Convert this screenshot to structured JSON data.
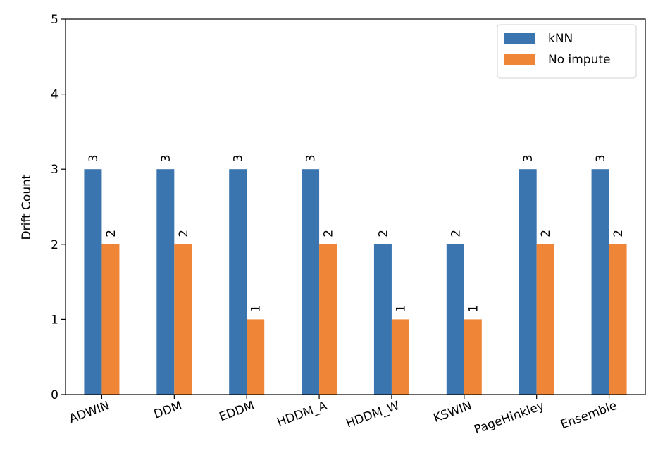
{
  "chart_data": {
    "type": "bar",
    "categories": [
      "ADWIN",
      "DDM",
      "EDDM",
      "HDDM_A",
      "HDDM_W",
      "KSWIN",
      "PageHinkley",
      "Ensemble"
    ],
    "series": [
      {
        "name": "kNN",
        "values": [
          3,
          3,
          3,
          3,
          2,
          2,
          3,
          3
        ],
        "color": "#3a75b0"
      },
      {
        "name": "No impute",
        "values": [
          2,
          2,
          1,
          2,
          1,
          1,
          2,
          2
        ],
        "color": "#ef8536"
      }
    ],
    "title": "",
    "xlabel": "",
    "ylabel": "Drift Count",
    "ylim": [
      0,
      5
    ],
    "yticks": [
      0,
      1,
      2,
      3,
      4,
      5
    ],
    "grid": false,
    "legend": "top-right",
    "x_tick_rotation_deg": -20,
    "bar_labels_rotated": true
  }
}
